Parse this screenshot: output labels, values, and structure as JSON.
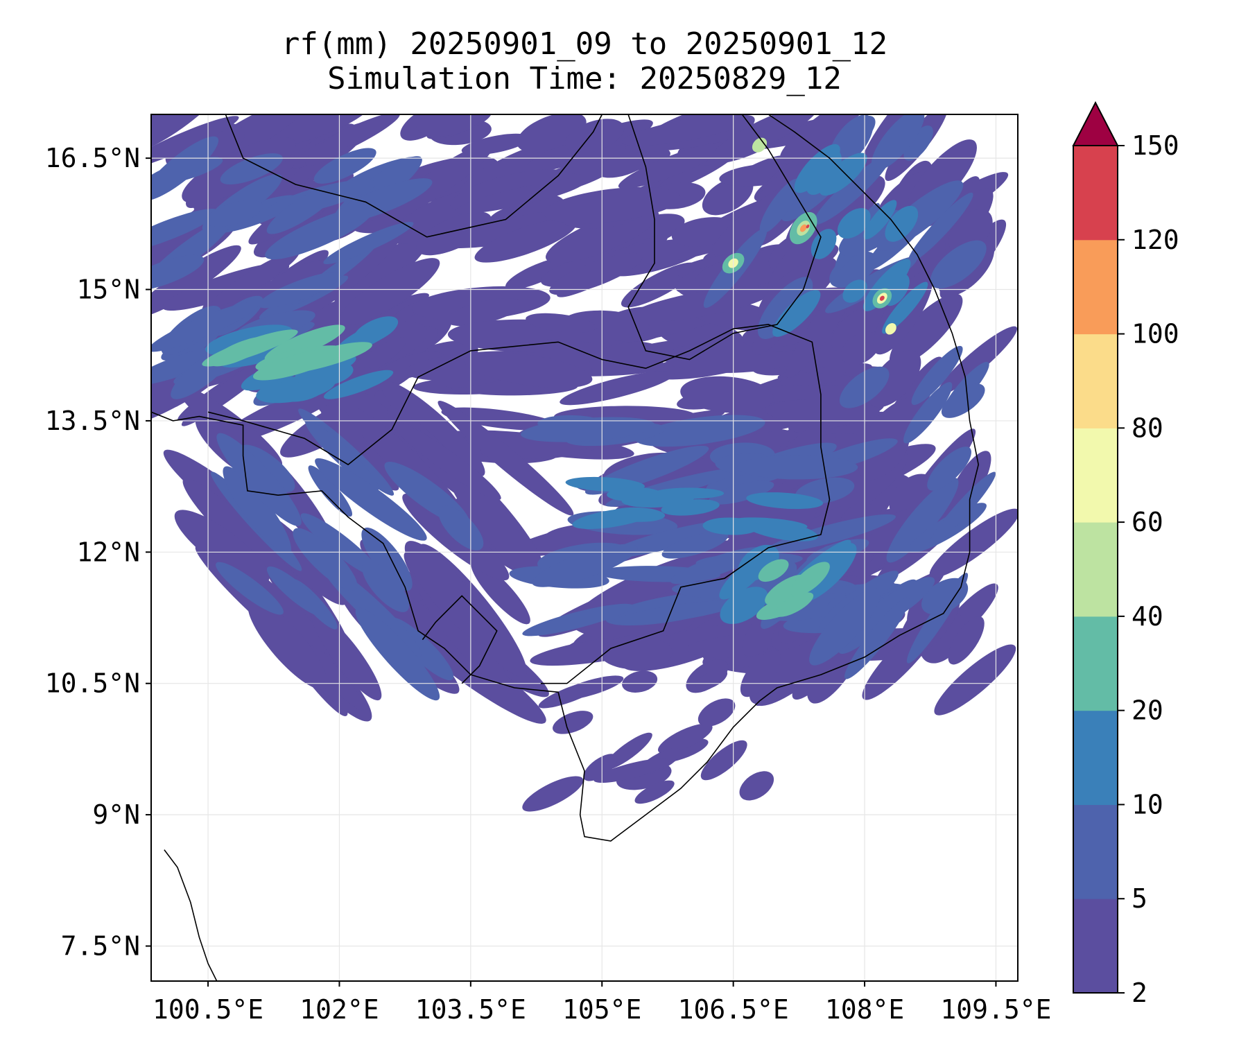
{
  "title": {
    "line1": "rf(mm) 20250901_09 to 20250901_12",
    "line2": "Simulation Time: 20250829_12"
  },
  "map": {
    "lon_range": [
      99.85,
      109.75
    ],
    "lat_range": [
      7.1,
      17.0
    ],
    "lon_ticks": [
      {
        "value": 100.5,
        "label": "100.5°E"
      },
      {
        "value": 102.0,
        "label": "102°E"
      },
      {
        "value": 103.5,
        "label": "103.5°E"
      },
      {
        "value": 105.0,
        "label": "105°E"
      },
      {
        "value": 106.5,
        "label": "106.5°E"
      },
      {
        "value": 108.0,
        "label": "108°E"
      },
      {
        "value": 109.5,
        "label": "109.5°E"
      }
    ],
    "lat_ticks": [
      {
        "value": 16.5,
        "label": "16.5°N"
      },
      {
        "value": 15.0,
        "label": "15°N"
      },
      {
        "value": 13.5,
        "label": "13.5°N"
      },
      {
        "value": 12.0,
        "label": "12°N"
      },
      {
        "value": 10.5,
        "label": "10.5°N"
      },
      {
        "value": 9.0,
        "label": "9°N"
      },
      {
        "value": 7.5,
        "label": "7.5°N"
      }
    ],
    "gridlines": true
  },
  "colorbar": {
    "levels": [
      {
        "label": "2",
        "color": "#5b4e9f"
      },
      {
        "label": "5",
        "color": "#4e63ad"
      },
      {
        "label": "10",
        "color": "#3a80b9"
      },
      {
        "label": "20",
        "color": "#63bca6"
      },
      {
        "label": "40",
        "color": "#bde3a1"
      },
      {
        "label": "60",
        "color": "#f2f9ad"
      },
      {
        "label": "80",
        "color": "#fbdc8a"
      },
      {
        "label": "100",
        "color": "#f99c59"
      },
      {
        "label": "120",
        "color": "#d7414e"
      },
      {
        "label": "150",
        "color": "#d7414e"
      }
    ],
    "extend_color": "#9e0142",
    "extend": "max"
  }
}
